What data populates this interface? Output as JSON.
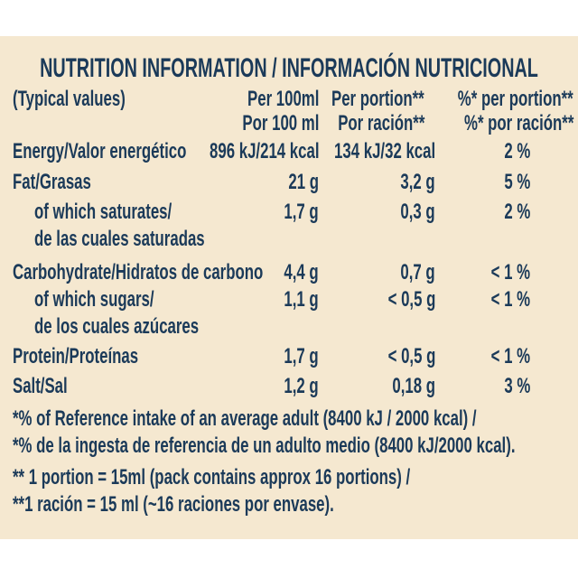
{
  "colors": {
    "page_background": "#ffffff",
    "panel_background": "#f5e8d0",
    "text": "#1b3a59"
  },
  "label": {
    "title": "NUTRITION INFORMATION / INFORMACIÓN NUTRICIONAL",
    "typical_values": "(Typical values)",
    "columns": {
      "per100_en": "Per 100ml",
      "per100_es": "Por 100 ml",
      "portion_en": "Per portion**",
      "portion_es": "Por ración**",
      "pct_en": "%* per portion**",
      "pct_es": "%* por ración**"
    },
    "rows": [
      {
        "label": "Energy/Valor energético",
        "per100": "896 kJ/214 kcal",
        "portion": "134 kJ/32 kcal",
        "pct": "2 %"
      },
      {
        "label": "Fat/Grasas",
        "per100": "21 g",
        "portion": "3,2 g",
        "pct": "5 %"
      },
      {
        "label": "of which saturates/",
        "per100": "1,7 g",
        "portion": "0,3 g",
        "pct": "2 %"
      },
      {
        "label": "de las cuales saturadas",
        "per100": "",
        "portion": "",
        "pct": ""
      },
      {
        "label": "Carbohydrate/Hidratos de carbono",
        "per100": "4,4 g",
        "portion": "0,7 g",
        "pct": "< 1 %"
      },
      {
        "label": "of which sugars/",
        "per100": "1,1 g",
        "portion": "< 0,5 g",
        "pct": "< 1 %"
      },
      {
        "label": "de los cuales azúcares",
        "per100": "",
        "portion": "",
        "pct": ""
      },
      {
        "label": "Protein/Proteínas",
        "per100": "1,7 g",
        "portion": "< 0,5 g",
        "pct": "< 1 %"
      },
      {
        "label": "Salt/Sal",
        "per100": "1,2 g",
        "portion": "0,18 g",
        "pct": "3 %"
      }
    ],
    "footnotes": [
      "*% of Reference intake of an average adult (8400 kJ / 2000 kcal) /",
      "*% de la ingesta de referencia de un adulto medio (8400 kJ/2000 kcal).",
      "** 1 portion = 15ml (pack contains approx 16 portions) /",
      "**1 ración = 15 ml (~16 raciones por envase)."
    ]
  }
}
